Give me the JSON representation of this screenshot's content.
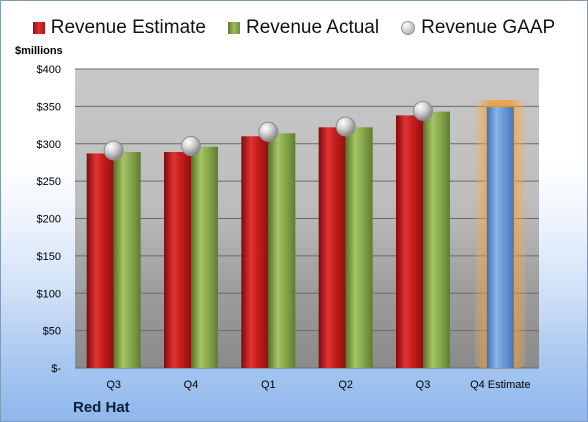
{
  "chart_data": {
    "type": "bar",
    "title": "",
    "company": "Red Hat",
    "ylabel": "$millions",
    "xlabel": "",
    "categories": [
      "Q3",
      "Q4",
      "Q1",
      "Q2",
      "Q3",
      "Q4 Estimate"
    ],
    "ylim": [
      0,
      400
    ],
    "yticks": [
      0,
      50,
      100,
      150,
      200,
      250,
      300,
      350,
      400
    ],
    "ytick_labels": [
      "$-",
      "$50",
      "$100",
      "$150",
      "$200",
      "$250",
      "$300",
      "$350",
      "$400"
    ],
    "grid": true,
    "legend_position": "top",
    "series": [
      {
        "name": "Revenue Estimate",
        "kind": "bar",
        "color": "#c0191c",
        "values": [
          287,
          289,
          310,
          322,
          338,
          null
        ]
      },
      {
        "name": "Revenue Actual",
        "kind": "bar",
        "color": "#7f9f45",
        "values": [
          289,
          296,
          314,
          322,
          343,
          null
        ]
      },
      {
        "name": "Revenue GAAP",
        "kind": "marker",
        "color": "#bfbfbf",
        "values": [
          291,
          297,
          316,
          323,
          344,
          null
        ]
      },
      {
        "name": "Q4 Estimate",
        "kind": "bar",
        "color": "#6a9bd8",
        "highlight": "#f4a535",
        "values": [
          null,
          null,
          null,
          null,
          null,
          349
        ]
      }
    ]
  }
}
